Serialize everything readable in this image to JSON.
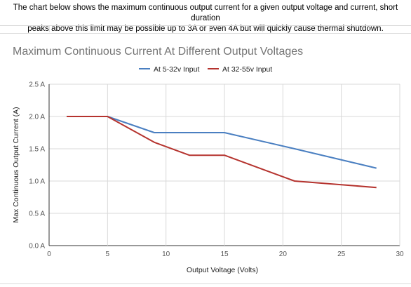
{
  "note": {
    "line1": "The chart below shows the maximum continuous output current for a given output voltage and current, short duration",
    "line2": "peaks above this limit may be possible up to 3A or even 4A but will quickly cause thermal shutdown."
  },
  "chart_data": {
    "type": "line",
    "title": "Maximum Continuous Current At Different Output Voltages",
    "xlabel": "Output Voltage (Volts)",
    "ylabel": "Max Continuous Output Current (A)",
    "xlim": [
      0,
      30
    ],
    "ylim": [
      0,
      2.5
    ],
    "xticks": [
      "0",
      "5",
      "10",
      "15",
      "20",
      "25",
      "30"
    ],
    "yticks": [
      "0.0 A",
      "0.5 A",
      "1.0 A",
      "1.5 A",
      "2.0 A",
      "2.5 A"
    ],
    "grid": true,
    "legend_position": "top",
    "series": [
      {
        "name": "At 5-32v Input",
        "color": "#4a7fc1",
        "points": [
          [
            5,
            2.0
          ],
          [
            9,
            1.75
          ],
          [
            15,
            1.75
          ],
          [
            21,
            1.5
          ],
          [
            28,
            1.2
          ]
        ]
      },
      {
        "name": "At 32-55v Input",
        "color": "#b5332e",
        "points": [
          [
            1.5,
            2.0
          ],
          [
            5,
            2.0
          ],
          [
            9,
            1.6
          ],
          [
            12,
            1.4
          ],
          [
            15,
            1.4
          ],
          [
            21,
            1.0
          ],
          [
            28,
            0.9
          ]
        ]
      }
    ]
  }
}
